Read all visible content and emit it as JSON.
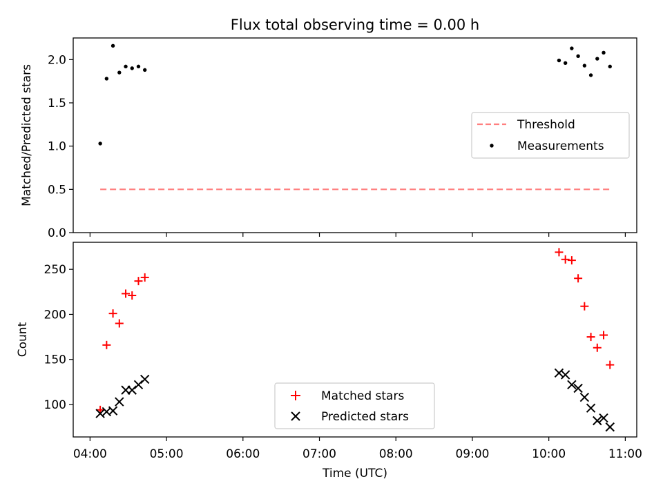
{
  "title": "Flux total observing time = 0.00 h",
  "xaxis": {
    "label": "Time (UTC)",
    "ticks": [
      "04:00",
      "05:00",
      "06:00",
      "07:00",
      "08:00",
      "09:00",
      "10:00",
      "11:00"
    ],
    "tick_hours": [
      4,
      5,
      6,
      7,
      8,
      9,
      10,
      11
    ],
    "range_hours": [
      3.78,
      11.15
    ]
  },
  "chart_data": [
    {
      "type": "scatter",
      "title": "Flux total observing time = 0.00 h",
      "xlabel": "",
      "ylabel": "Matched/Predicted stars",
      "ylim": [
        0,
        2.25
      ],
      "yticks": [
        "0.0",
        "0.5",
        "1.0",
        "1.5",
        "2.0"
      ],
      "ytick_values": [
        0,
        0.5,
        1.0,
        1.5,
        2.0
      ],
      "legend_position": "center-right",
      "threshold": {
        "name": "Threshold",
        "value": 0.5,
        "x_range": [
          "04:08",
          "10:49"
        ],
        "color": "#ff7f7f",
        "style": "dashed"
      },
      "series": [
        {
          "name": "Measurements",
          "color": "#000000",
          "marker": "dot",
          "x": [
            "04:08",
            "04:13",
            "04:18",
            "04:23",
            "04:28",
            "04:33",
            "04:38",
            "04:43",
            "10:08",
            "10:13",
            "10:18",
            "10:23",
            "10:28",
            "10:33",
            "10:38",
            "10:43",
            "10:48"
          ],
          "y": [
            1.03,
            1.78,
            2.16,
            1.85,
            1.92,
            1.9,
            1.92,
            1.88,
            1.99,
            1.96,
            2.13,
            2.04,
            1.93,
            1.82,
            2.01,
            2.08,
            1.92
          ]
        }
      ]
    },
    {
      "type": "scatter",
      "xlabel": "Time (UTC)",
      "ylabel": "Count",
      "ylim": [
        64,
        280
      ],
      "yticks": [
        "100",
        "150",
        "200",
        "250"
      ],
      "ytick_values": [
        100,
        150,
        200,
        250
      ],
      "legend_position": "bottom-center",
      "series": [
        {
          "name": "Matched stars",
          "color": "#ff0000",
          "marker": "plus",
          "x": [
            "04:08",
            "04:13",
            "04:18",
            "04:23",
            "04:28",
            "04:33",
            "04:38",
            "04:43",
            "10:08",
            "10:13",
            "10:18",
            "10:23",
            "10:28",
            "10:33",
            "10:38",
            "10:43",
            "10:48"
          ],
          "y": [
            94,
            166,
            201,
            190,
            223,
            221,
            237,
            241,
            269,
            261,
            260,
            240,
            209,
            175,
            163,
            177,
            144
          ]
        },
        {
          "name": "Predicted stars",
          "color": "#000000",
          "marker": "x",
          "x": [
            "04:08",
            "04:13",
            "04:18",
            "04:23",
            "04:28",
            "04:33",
            "04:38",
            "04:43",
            "10:08",
            "10:13",
            "10:18",
            "10:23",
            "10:28",
            "10:33",
            "10:38",
            "10:43",
            "10:48"
          ],
          "y": [
            90,
            92,
            93,
            103,
            116,
            116,
            122,
            128,
            135,
            133,
            122,
            118,
            108,
            96,
            82,
            85,
            75
          ]
        }
      ]
    }
  ]
}
